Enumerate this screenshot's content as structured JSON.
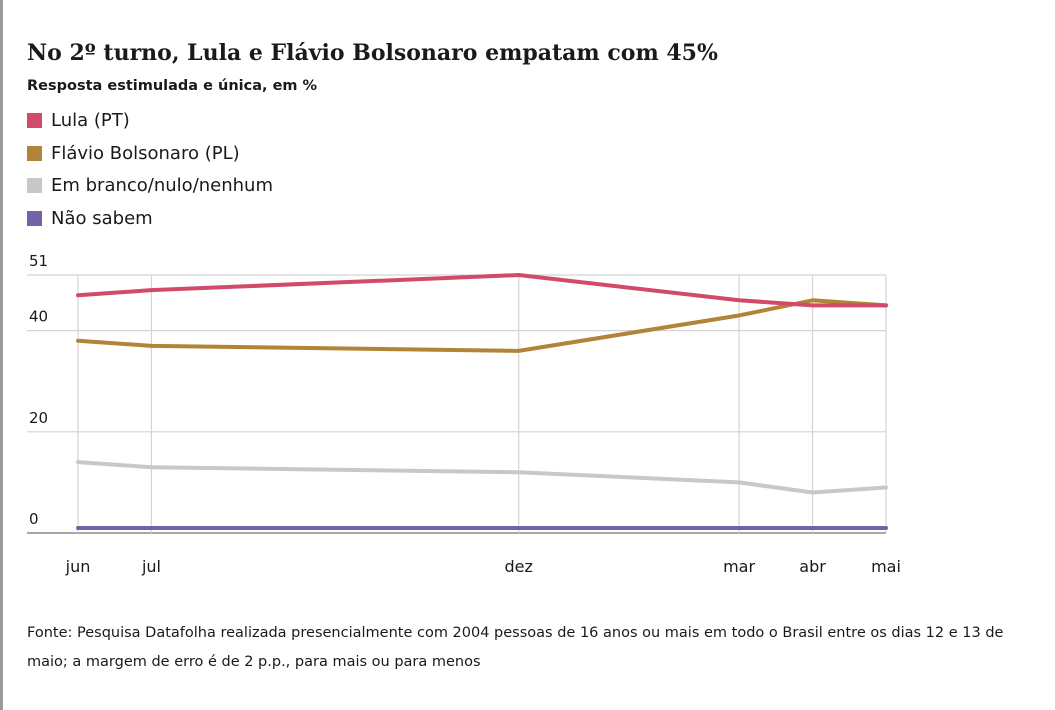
{
  "chart_data": {
    "type": "line",
    "title": "No 2º turno, Lula e Flávio Bolsonaro empatam com 45%",
    "subtitle": "Resposta estimulada e única, em %",
    "x": [
      "jun",
      "jul",
      "dez",
      "mar",
      "abr",
      "mai"
    ],
    "x_positions_months": [
      0,
      1,
      6,
      9,
      10,
      11
    ],
    "yticks": [
      0,
      20,
      40,
      51
    ],
    "ylim": [
      0,
      51
    ],
    "grid": true,
    "legend_position": "top-left",
    "series": [
      {
        "name": "Lula (PT)",
        "color": "#d2496a",
        "values": [
          47,
          48,
          51,
          46,
          45,
          45
        ]
      },
      {
        "name": "Flávio Bolsonaro (PL)",
        "color": "#b08439",
        "values": [
          38,
          37,
          36,
          43,
          46,
          45
        ]
      },
      {
        "name": "Em branco/nulo/nenhum",
        "color": "#c8c8c8",
        "values": [
          14,
          13,
          12,
          10,
          8,
          9
        ]
      },
      {
        "name": "Não sabem",
        "color": "#7462a6",
        "values": [
          1,
          1,
          1,
          1,
          1,
          1
        ]
      }
    ]
  },
  "footnote": "Fonte: Pesquisa Datafolha realizada presencialmente com 2004 pessoas de 16 anos ou mais em todo o Brasil entre os dias 12 e 13 de maio; a margem de erro é de 2 p.p., para mais ou para menos"
}
